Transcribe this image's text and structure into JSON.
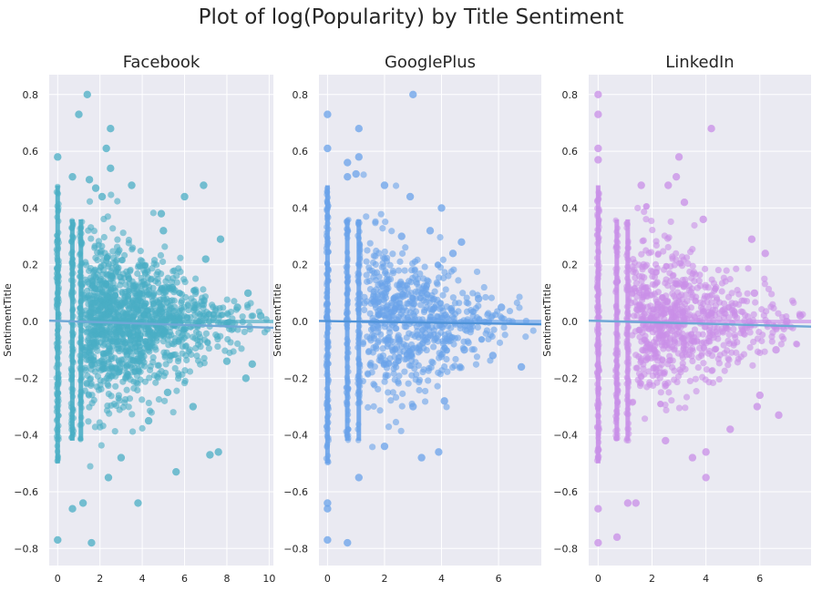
{
  "suptitle": "Plot of log(Popularity) by Title Sentiment",
  "chart_data": [
    {
      "type": "scatter",
      "title": "Facebook",
      "xlabel": "",
      "ylabel": "SentimentTitle",
      "xlim": [
        -0.4,
        10.2
      ],
      "ylim": [
        -0.86,
        0.87
      ],
      "xticks": [
        0,
        2,
        4,
        6,
        8,
        10
      ],
      "yticks": [
        -0.8,
        -0.6,
        -0.4,
        -0.2,
        0.0,
        0.2,
        0.4,
        0.6,
        0.8
      ],
      "ytick_labels": [
        "−0.8",
        "−0.6",
        "−0.4",
        "−0.2",
        "0.0",
        "0.2",
        "0.4",
        "0.6",
        "0.8"
      ],
      "color": "#4aaec5",
      "regression_color": "#6fa8d6",
      "regression": {
        "x": [
          -0.4,
          10.2
        ],
        "y": [
          0.003,
          -0.022
        ]
      },
      "grid": true,
      "points": [
        {
          "x": 1.4,
          "y": 0.8
        },
        {
          "x": 1.0,
          "y": 0.73
        },
        {
          "x": 2.5,
          "y": 0.68
        },
        {
          "x": 2.3,
          "y": 0.61
        },
        {
          "x": 2.5,
          "y": 0.54
        },
        {
          "x": 0.0,
          "y": 0.58
        },
        {
          "x": 0.7,
          "y": 0.51
        },
        {
          "x": 1.5,
          "y": 0.5
        },
        {
          "x": 2.1,
          "y": 0.44
        },
        {
          "x": 6.0,
          "y": 0.44
        },
        {
          "x": 6.9,
          "y": 0.48
        },
        {
          "x": 1.8,
          "y": 0.47
        },
        {
          "x": 4.9,
          "y": 0.38
        },
        {
          "x": 3.5,
          "y": 0.48
        },
        {
          "x": 5.0,
          "y": 0.32
        },
        {
          "x": 7.7,
          "y": 0.29
        },
        {
          "x": 7.0,
          "y": 0.22
        },
        {
          "x": 9.0,
          "y": 0.1
        },
        {
          "x": 8.9,
          "y": -0.2
        },
        {
          "x": 9.2,
          "y": -0.15
        },
        {
          "x": 8.0,
          "y": -0.14
        },
        {
          "x": 7.2,
          "y": -0.47
        },
        {
          "x": 7.6,
          "y": -0.46
        },
        {
          "x": 5.6,
          "y": -0.53
        },
        {
          "x": 3.8,
          "y": -0.64
        },
        {
          "x": 2.4,
          "y": -0.55
        },
        {
          "x": 1.2,
          "y": -0.64
        },
        {
          "x": 0.7,
          "y": -0.66
        },
        {
          "x": 0.0,
          "y": -0.77
        },
        {
          "x": 1.6,
          "y": -0.78
        },
        {
          "x": 3.0,
          "y": -0.48
        },
        {
          "x": 6.4,
          "y": -0.3
        },
        {
          "x": 4.3,
          "y": -0.35
        },
        {
          "x": 5.2,
          "y": -0.25
        },
        {
          "x": 9.6,
          "y": 0.02
        },
        {
          "x": 8.5,
          "y": 0.05
        }
      ]
    },
    {
      "type": "scatter",
      "title": "GooglePlus",
      "xlabel": "",
      "ylabel": "SentimentTitle",
      "xlim": [
        -0.3,
        7.5
      ],
      "ylim": [
        -0.86,
        0.87
      ],
      "xticks": [
        0,
        2,
        4,
        6
      ],
      "yticks": [
        -0.8,
        -0.6,
        -0.4,
        -0.2,
        0.0,
        0.2,
        0.4,
        0.6,
        0.8
      ],
      "ytick_labels": [
        "−0.8",
        "−0.6",
        "−0.4",
        "−0.2",
        "0.0",
        "0.2",
        "0.4",
        "0.6",
        "0.8"
      ],
      "color": "#6aa3ea",
      "regression_color": "#4f93d8",
      "regression": {
        "x": [
          -0.3,
          7.5
        ],
        "y": [
          0.002,
          -0.01
        ]
      },
      "grid": true,
      "points": [
        {
          "x": 3.0,
          "y": 0.8
        },
        {
          "x": 0.0,
          "y": 0.73
        },
        {
          "x": 1.1,
          "y": 0.68
        },
        {
          "x": 0.0,
          "y": 0.61
        },
        {
          "x": 0.7,
          "y": 0.56
        },
        {
          "x": 1.1,
          "y": 0.58
        },
        {
          "x": 0.7,
          "y": 0.51
        },
        {
          "x": 1.0,
          "y": 0.52
        },
        {
          "x": 2.0,
          "y": 0.48
        },
        {
          "x": 2.9,
          "y": 0.44
        },
        {
          "x": 4.0,
          "y": 0.4
        },
        {
          "x": 3.6,
          "y": 0.32
        },
        {
          "x": 4.7,
          "y": 0.28
        },
        {
          "x": 4.4,
          "y": 0.24
        },
        {
          "x": 5.3,
          "y": 0.08
        },
        {
          "x": 6.1,
          "y": 0.05
        },
        {
          "x": 6.8,
          "y": -0.16
        },
        {
          "x": 5.8,
          "y": -0.12
        },
        {
          "x": 4.8,
          "y": -0.1
        },
        {
          "x": 3.9,
          "y": -0.46
        },
        {
          "x": 3.3,
          "y": -0.48
        },
        {
          "x": 2.0,
          "y": -0.44
        },
        {
          "x": 1.1,
          "y": -0.55
        },
        {
          "x": 0.0,
          "y": -0.64
        },
        {
          "x": 0.0,
          "y": -0.66
        },
        {
          "x": 0.0,
          "y": -0.77
        },
        {
          "x": 0.7,
          "y": -0.78
        },
        {
          "x": 4.1,
          "y": -0.28
        },
        {
          "x": 3.0,
          "y": -0.3
        },
        {
          "x": 2.6,
          "y": 0.3
        }
      ]
    },
    {
      "type": "scatter",
      "title": "LinkedIn",
      "xlabel": "",
      "ylabel": "SentimentTitle",
      "xlim": [
        -0.35,
        7.9
      ],
      "ylim": [
        -0.86,
        0.87
      ],
      "xticks": [
        0,
        2,
        4,
        6
      ],
      "yticks": [
        -0.8,
        -0.6,
        -0.4,
        -0.2,
        0.0,
        0.2,
        0.4,
        0.6,
        0.8
      ],
      "ytick_labels": [
        "−0.8",
        "−0.6",
        "−0.4",
        "−0.2",
        "0.0",
        "0.2",
        "0.4",
        "0.6",
        "0.8"
      ],
      "color": "#c98fe8",
      "regression_color": "#6fa8d6",
      "regression": {
        "x": [
          -0.35,
          7.9
        ],
        "y": [
          0.003,
          -0.018
        ]
      },
      "grid": true,
      "points": [
        {
          "x": 0.0,
          "y": 0.8
        },
        {
          "x": 0.0,
          "y": 0.73
        },
        {
          "x": 4.2,
          "y": 0.68
        },
        {
          "x": 0.0,
          "y": 0.61
        },
        {
          "x": 0.0,
          "y": 0.57
        },
        {
          "x": 3.0,
          "y": 0.58
        },
        {
          "x": 2.9,
          "y": 0.51
        },
        {
          "x": 2.6,
          "y": 0.48
        },
        {
          "x": 1.6,
          "y": 0.48
        },
        {
          "x": 3.2,
          "y": 0.42
        },
        {
          "x": 3.9,
          "y": 0.36
        },
        {
          "x": 5.7,
          "y": 0.29
        },
        {
          "x": 6.2,
          "y": 0.24
        },
        {
          "x": 5.8,
          "y": 0.1
        },
        {
          "x": 7.0,
          "y": 0.0
        },
        {
          "x": 6.6,
          "y": -0.1
        },
        {
          "x": 6.0,
          "y": -0.26
        },
        {
          "x": 6.7,
          "y": -0.33
        },
        {
          "x": 5.9,
          "y": -0.3
        },
        {
          "x": 4.0,
          "y": -0.46
        },
        {
          "x": 3.5,
          "y": -0.48
        },
        {
          "x": 4.0,
          "y": -0.55
        },
        {
          "x": 1.1,
          "y": -0.64
        },
        {
          "x": 1.4,
          "y": -0.64
        },
        {
          "x": 0.0,
          "y": -0.66
        },
        {
          "x": 0.0,
          "y": -0.78
        },
        {
          "x": 0.7,
          "y": -0.76
        },
        {
          "x": 4.9,
          "y": -0.38
        },
        {
          "x": 2.5,
          "y": -0.42
        },
        {
          "x": 7.5,
          "y": 0.02
        }
      ]
    }
  ]
}
